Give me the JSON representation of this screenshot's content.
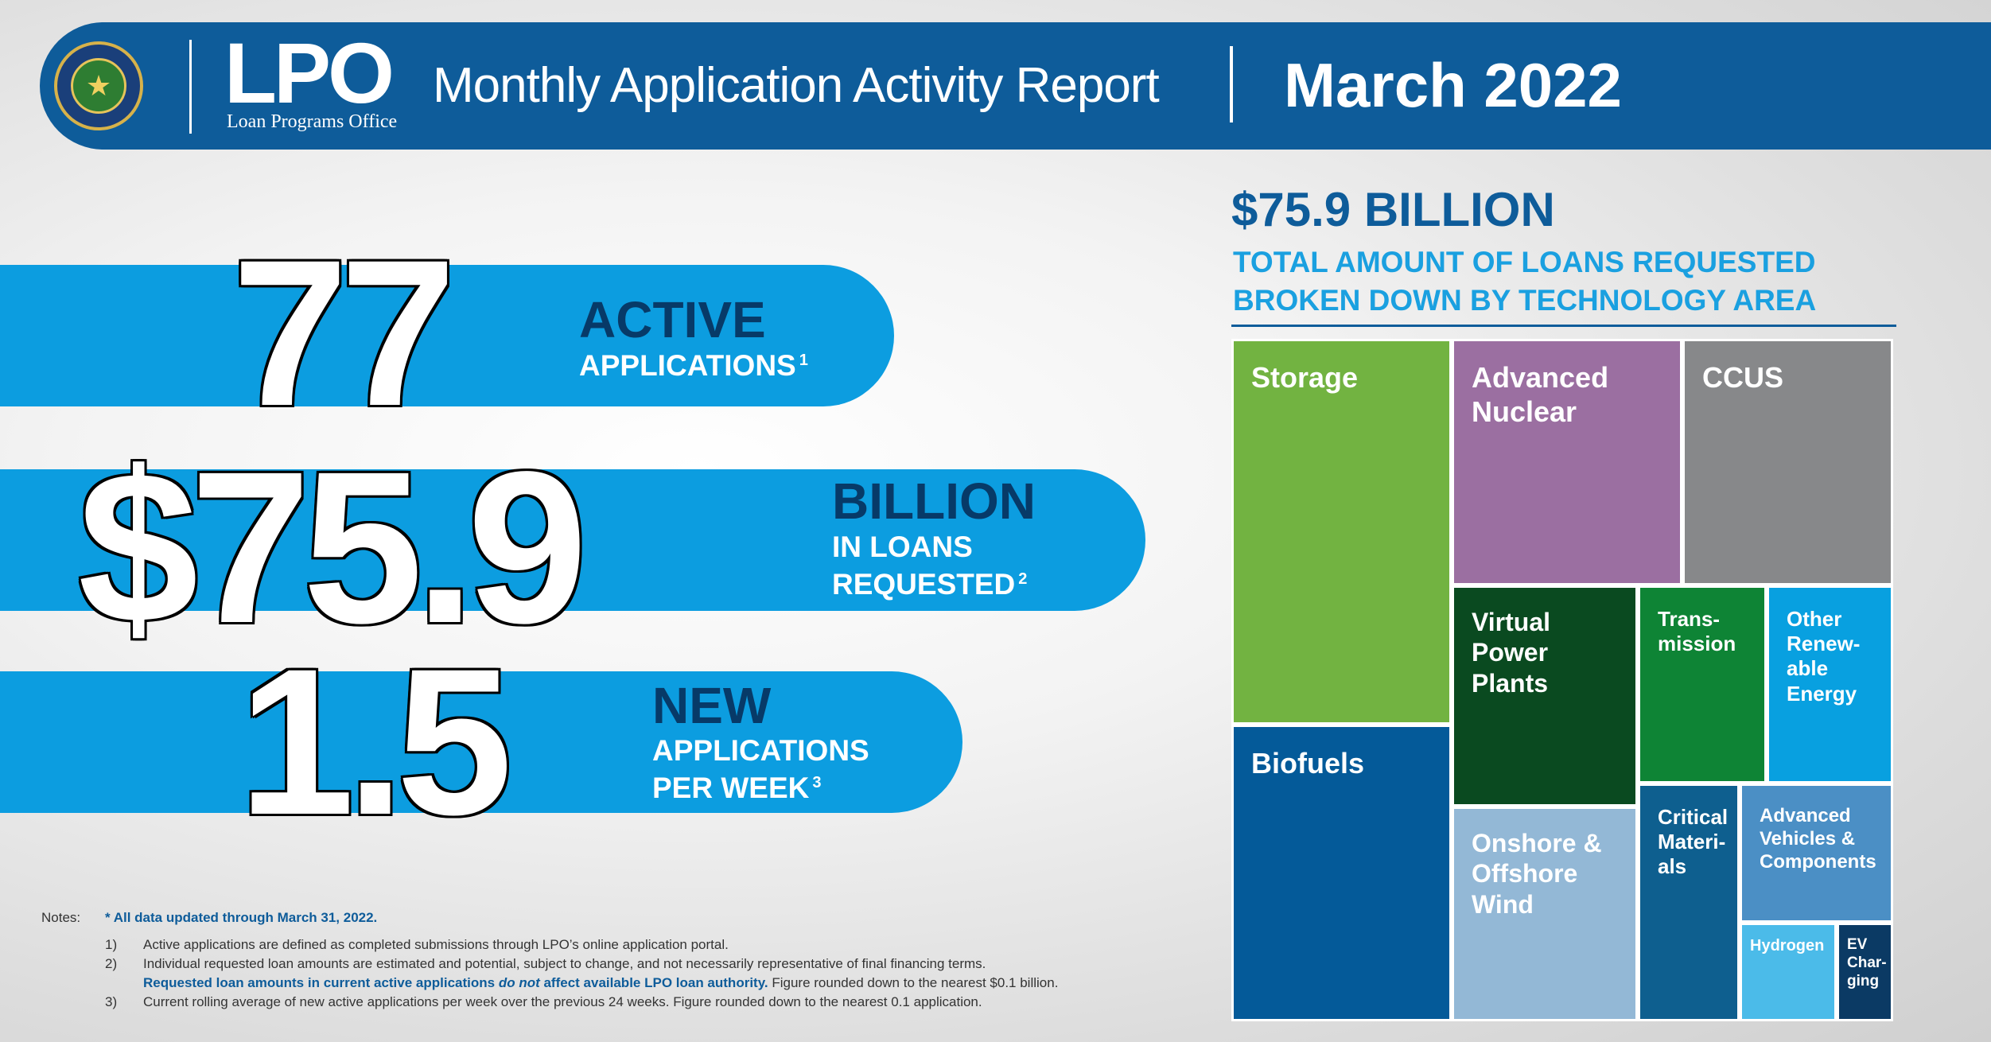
{
  "header": {
    "logo_text": "LPO",
    "logo_sub": "Loan Programs Office",
    "title": "Monthly Application Activity Report",
    "period": "March 2022",
    "seal_icon": "doe-seal-icon"
  },
  "stats": [
    {
      "number": "77",
      "head": "ACTIVE",
      "lines": [
        "APPLICATIONS"
      ],
      "note": "1"
    },
    {
      "number": "$75.9",
      "head": "BILLION",
      "lines": [
        "IN LOANS",
        "REQUESTED"
      ],
      "note": "2"
    },
    {
      "number": "1.5",
      "head": "NEW",
      "lines": [
        "APPLICATIONS",
        "PER WEEK"
      ],
      "note": "3"
    }
  ],
  "notes": {
    "label": "Notes:",
    "star": "* All data updated through March 31, 2022.",
    "items": [
      {
        "num": "1)",
        "text": "Active applications are defined as completed submissions through LPO’s online application portal."
      },
      {
        "num": "2)",
        "text": "Individual requested loan amounts are estimated and potential, subject to change, and not necessarily representative of final financing terms."
      },
      {
        "num": "",
        "blue_before": "Requested loan amounts in current active applications ",
        "blue_italic": "do not",
        "blue_after": " affect available LPO loan authority.",
        "text": " Figure rounded down to the nearest $0.1 billion."
      },
      {
        "num": "3)",
        "text": "Current rolling average of new active applications per week over the previous 24 weeks. Figure rounded down to the nearest 0.1 application."
      }
    ]
  },
  "chart_data": {
    "type": "treemap",
    "title": "$75.9 BILLION",
    "subtitle": "TOTAL AMOUNT OF LOANS REQUESTED BROKEN DOWN BY TECHNOLOGY AREA",
    "total_billion": 75.9,
    "tiles": [
      {
        "name": "Storage",
        "label": "Storage",
        "color": "#72b341",
        "share": 0.191
      },
      {
        "name": "Advanced Nuclear",
        "label": "Advanced\nNuclear",
        "color": "#9b6fa1",
        "share": 0.126
      },
      {
        "name": "CCUS",
        "label": "CCUS",
        "color": "#87888a",
        "share": 0.116
      },
      {
        "name": "Biofuels",
        "label": "Biofuels",
        "color": "#045a99",
        "share": 0.146
      },
      {
        "name": "Virtual Power Plants",
        "label": "Virtual\nPower\nPlants",
        "color": "#0a4a20",
        "share": 0.062
      },
      {
        "name": "Transmission",
        "label": "Trans-\nmission",
        "color": "#0e8435",
        "share": 0.043
      },
      {
        "name": "Other Renewable Energy",
        "label": "Other\nRenew-\nable\nEnergy",
        "color": "#08a0e0",
        "share": 0.043
      },
      {
        "name": "Onshore & Offshore Wind",
        "label": "Onshore &\nOffshore\nWind",
        "color": "#93b8d6",
        "share": 0.087
      },
      {
        "name": "Critical Materials",
        "label": "Critical\nMateri-\nals",
        "color": "#0e5f8f",
        "share": 0.057
      },
      {
        "name": "Advanced Vehicles & Components",
        "label": "Advanced\nVehicles &\nComponents",
        "color": "#4b8fc5",
        "share": 0.036
      },
      {
        "name": "Hydrogen",
        "label": "Hydrogen",
        "color": "#4bbbe9",
        "share": 0.024
      },
      {
        "name": "EV Charging",
        "label": "EV\nChar-\nging",
        "color": "#0b3a64",
        "share": 0.008
      }
    ]
  }
}
